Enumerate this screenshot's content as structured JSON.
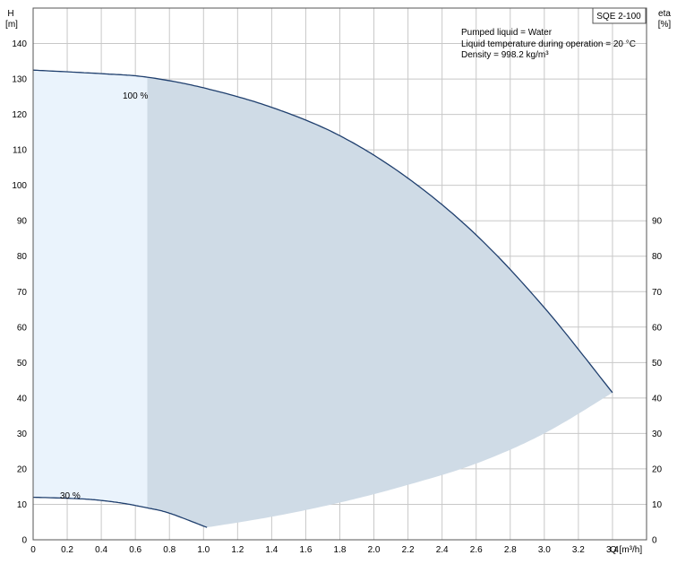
{
  "chart_data": {
    "type": "line",
    "title": "SQE 2-100",
    "xlabel": "Q [m³/h]",
    "ylabel_left_name": "H",
    "ylabel_left_unit": "[m]",
    "ylabel_right_name": "eta",
    "ylabel_right_unit": "[%]",
    "xlim": [
      0,
      3.6
    ],
    "ylim": [
      0,
      150
    ],
    "x_ticks": [
      0,
      0.2,
      0.4,
      0.6,
      0.8,
      1.0,
      1.2,
      1.4,
      1.6,
      1.8,
      2.0,
      2.2,
      2.4,
      2.6,
      2.8,
      3.0,
      3.2,
      3.4
    ],
    "x_tick_labels": [
      "0",
      "0.2",
      "0.4",
      "0.6",
      "0.8",
      "1.0",
      "1.2",
      "1.4",
      "1.6",
      "1.8",
      "2.0",
      "2.2",
      "2.4",
      "2.6",
      "2.8",
      "3.0",
      "3.2",
      "3.4"
    ],
    "y_left_ticks": [
      0,
      10,
      20,
      30,
      40,
      50,
      60,
      70,
      80,
      90,
      100,
      110,
      120,
      130,
      140
    ],
    "y_right_ticks": [
      0,
      10,
      20,
      30,
      40,
      50,
      60,
      70,
      80,
      90
    ],
    "grid": true,
    "notes": [
      "Pumped liquid = Water",
      "Liquid temperature during operation = 20 °C",
      "Density = 998.2 kg/m³"
    ],
    "series": [
      {
        "name": "100 %",
        "x": [
          0,
          0.4,
          0.67,
          1.0,
          1.4,
          1.8,
          2.2,
          2.6,
          3.0,
          3.4
        ],
        "y": [
          132.5,
          131.5,
          130.5,
          127.5,
          122.0,
          114.0,
          102.0,
          86.0,
          65.5,
          41.5
        ]
      },
      {
        "name": "30 %",
        "x": [
          0,
          0.3,
          0.5,
          0.67,
          0.8,
          1.02
        ],
        "y": [
          12.0,
          11.5,
          10.5,
          9.0,
          7.5,
          3.5
        ]
      }
    ],
    "operating_area_lower_boundary": {
      "x": [
        1.02,
        1.4,
        1.8,
        2.2,
        2.6,
        3.0,
        3.4
      ],
      "y": [
        3.5,
        6.5,
        10.5,
        15.5,
        21.5,
        30.0,
        41.5
      ]
    },
    "colors": {
      "curve": "#1f3f6e",
      "area_light": "#eaf3fc",
      "area_dark": "#cfdbe6",
      "grid": "#c8c8c8"
    }
  }
}
